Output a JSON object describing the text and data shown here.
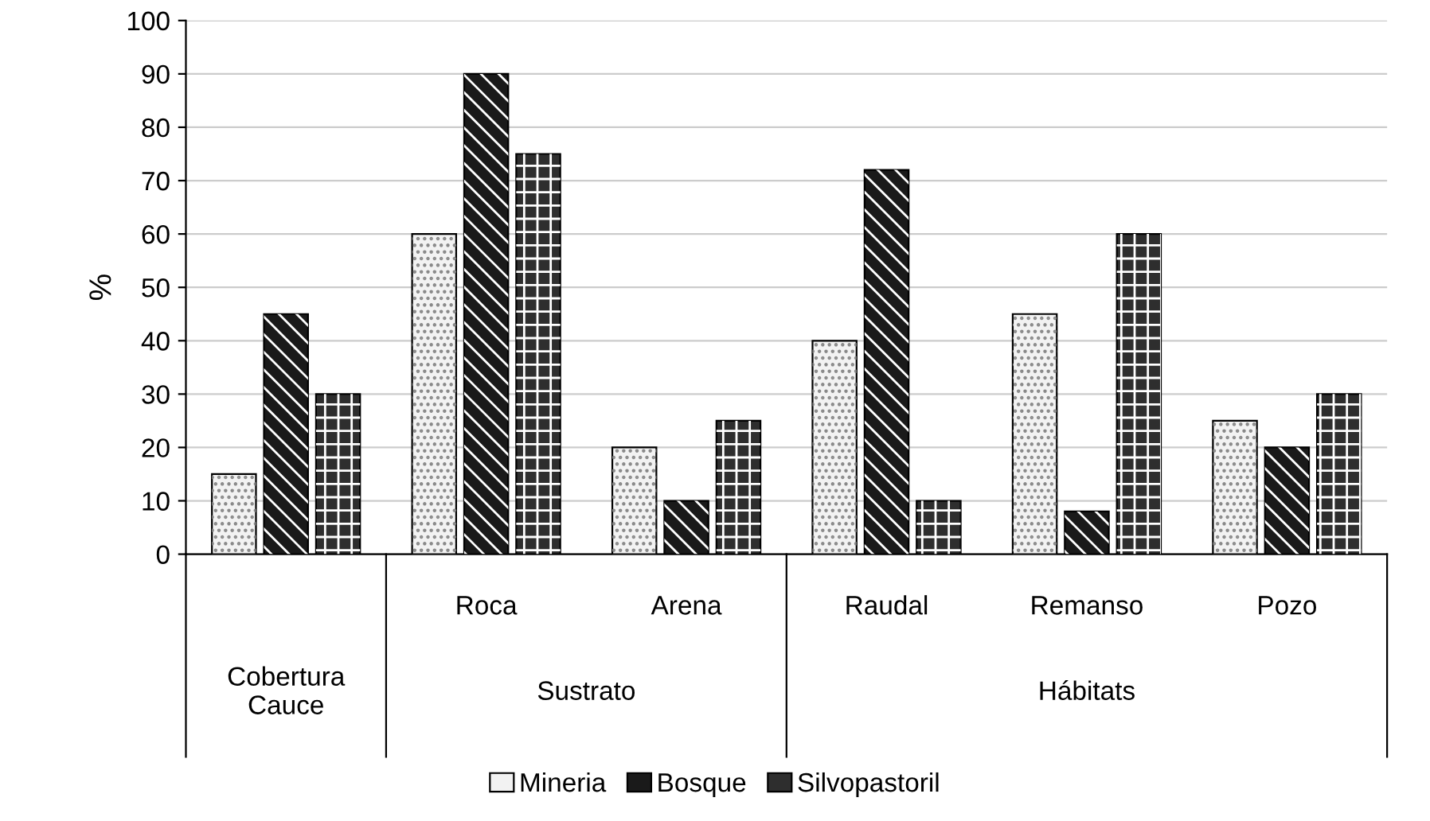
{
  "chart_data": {
    "type": "bar",
    "ylabel": "%",
    "categories": [
      null,
      "Roca",
      "Arena",
      "Raudal",
      "Remanso",
      "Pozo"
    ],
    "series": [
      {
        "name": "Mineria",
        "color": "#f2f2f2",
        "values": [
          15,
          60,
          20,
          40,
          45,
          25
        ]
      },
      {
        "name": "Bosque",
        "color": "#1a1a1a",
        "values": [
          45,
          90,
          10,
          72,
          8,
          20
        ]
      },
      {
        "name": "Silvopastoril",
        "color": "#2e2e2e",
        "values": [
          30,
          75,
          25,
          10,
          60,
          30
        ]
      }
    ],
    "annotations": [
      "Cobertura\nCauce",
      "Sustrato",
      "Hábitats"
    ],
    "ylim": [
      0,
      100
    ],
    "yticks": [
      0,
      10,
      20,
      30,
      40,
      50,
      60,
      70,
      80,
      90,
      100
    ],
    "grid": "y",
    "legend": "bottom"
  }
}
